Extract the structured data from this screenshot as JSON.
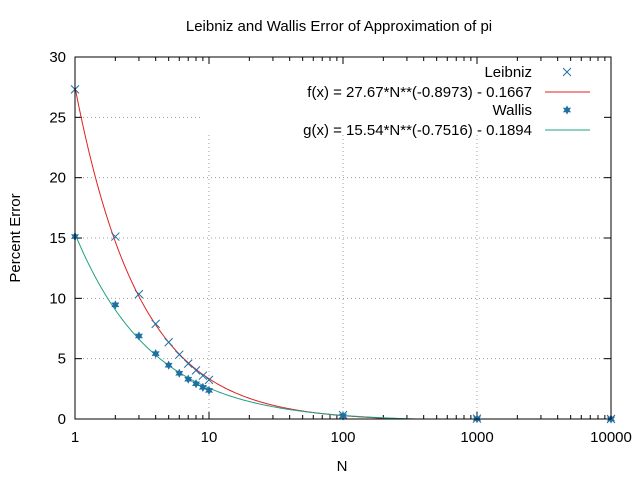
{
  "chart_data": {
    "type": "scatter",
    "title": "Leibniz and Wallis Error of Approximation of pi",
    "xlabel": "N",
    "ylabel": "Percent Error",
    "xscale": "log",
    "xlim": [
      1,
      10000
    ],
    "ylim": [
      0,
      30
    ],
    "grid": true,
    "legend_position": "top-right",
    "x_ticks": [
      1,
      10,
      100,
      1000,
      10000
    ],
    "x_tick_labels": [
      "1",
      "10",
      "100",
      "1000",
      "10000"
    ],
    "y_ticks": [
      0,
      5,
      10,
      15,
      20,
      25,
      30
    ],
    "y_tick_labels": [
      "0",
      "5",
      "10",
      "15",
      "20",
      "25",
      "30"
    ],
    "series": [
      {
        "name": "Leibniz",
        "kind": "points",
        "marker": "x",
        "color": "#1f6fa3",
        "x": [
          1,
          2,
          3,
          4,
          5,
          6,
          7,
          8,
          9,
          10,
          100,
          1000,
          10000
        ],
        "y": [
          27.32,
          15.12,
          10.35,
          7.88,
          6.36,
          5.33,
          4.59,
          4.03,
          3.59,
          3.24,
          0.32,
          0.03,
          0.003
        ]
      },
      {
        "name": "f(x) = 27.67*N**(-0.8973) - 0.1667",
        "kind": "fit",
        "color": "#e02020",
        "a": 27.67,
        "b": -0.8973,
        "c": -0.1667
      },
      {
        "name": "Wallis",
        "kind": "points",
        "marker": "star",
        "color": "#1f6fa3",
        "x": [
          1,
          2,
          3,
          4,
          5,
          6,
          7,
          8,
          9,
          10,
          100,
          1000,
          10000
        ],
        "y": [
          15.12,
          9.46,
          6.88,
          5.42,
          4.46,
          3.79,
          3.3,
          2.92,
          2.62,
          2.37,
          0.25,
          0.025,
          0.0025
        ]
      },
      {
        "name": "g(x) = 15.54*N**(-0.7516) - 0.1894",
        "kind": "fit",
        "color": "#20a080",
        "a": 15.54,
        "b": -0.7516,
        "c": -0.1894
      }
    ]
  }
}
